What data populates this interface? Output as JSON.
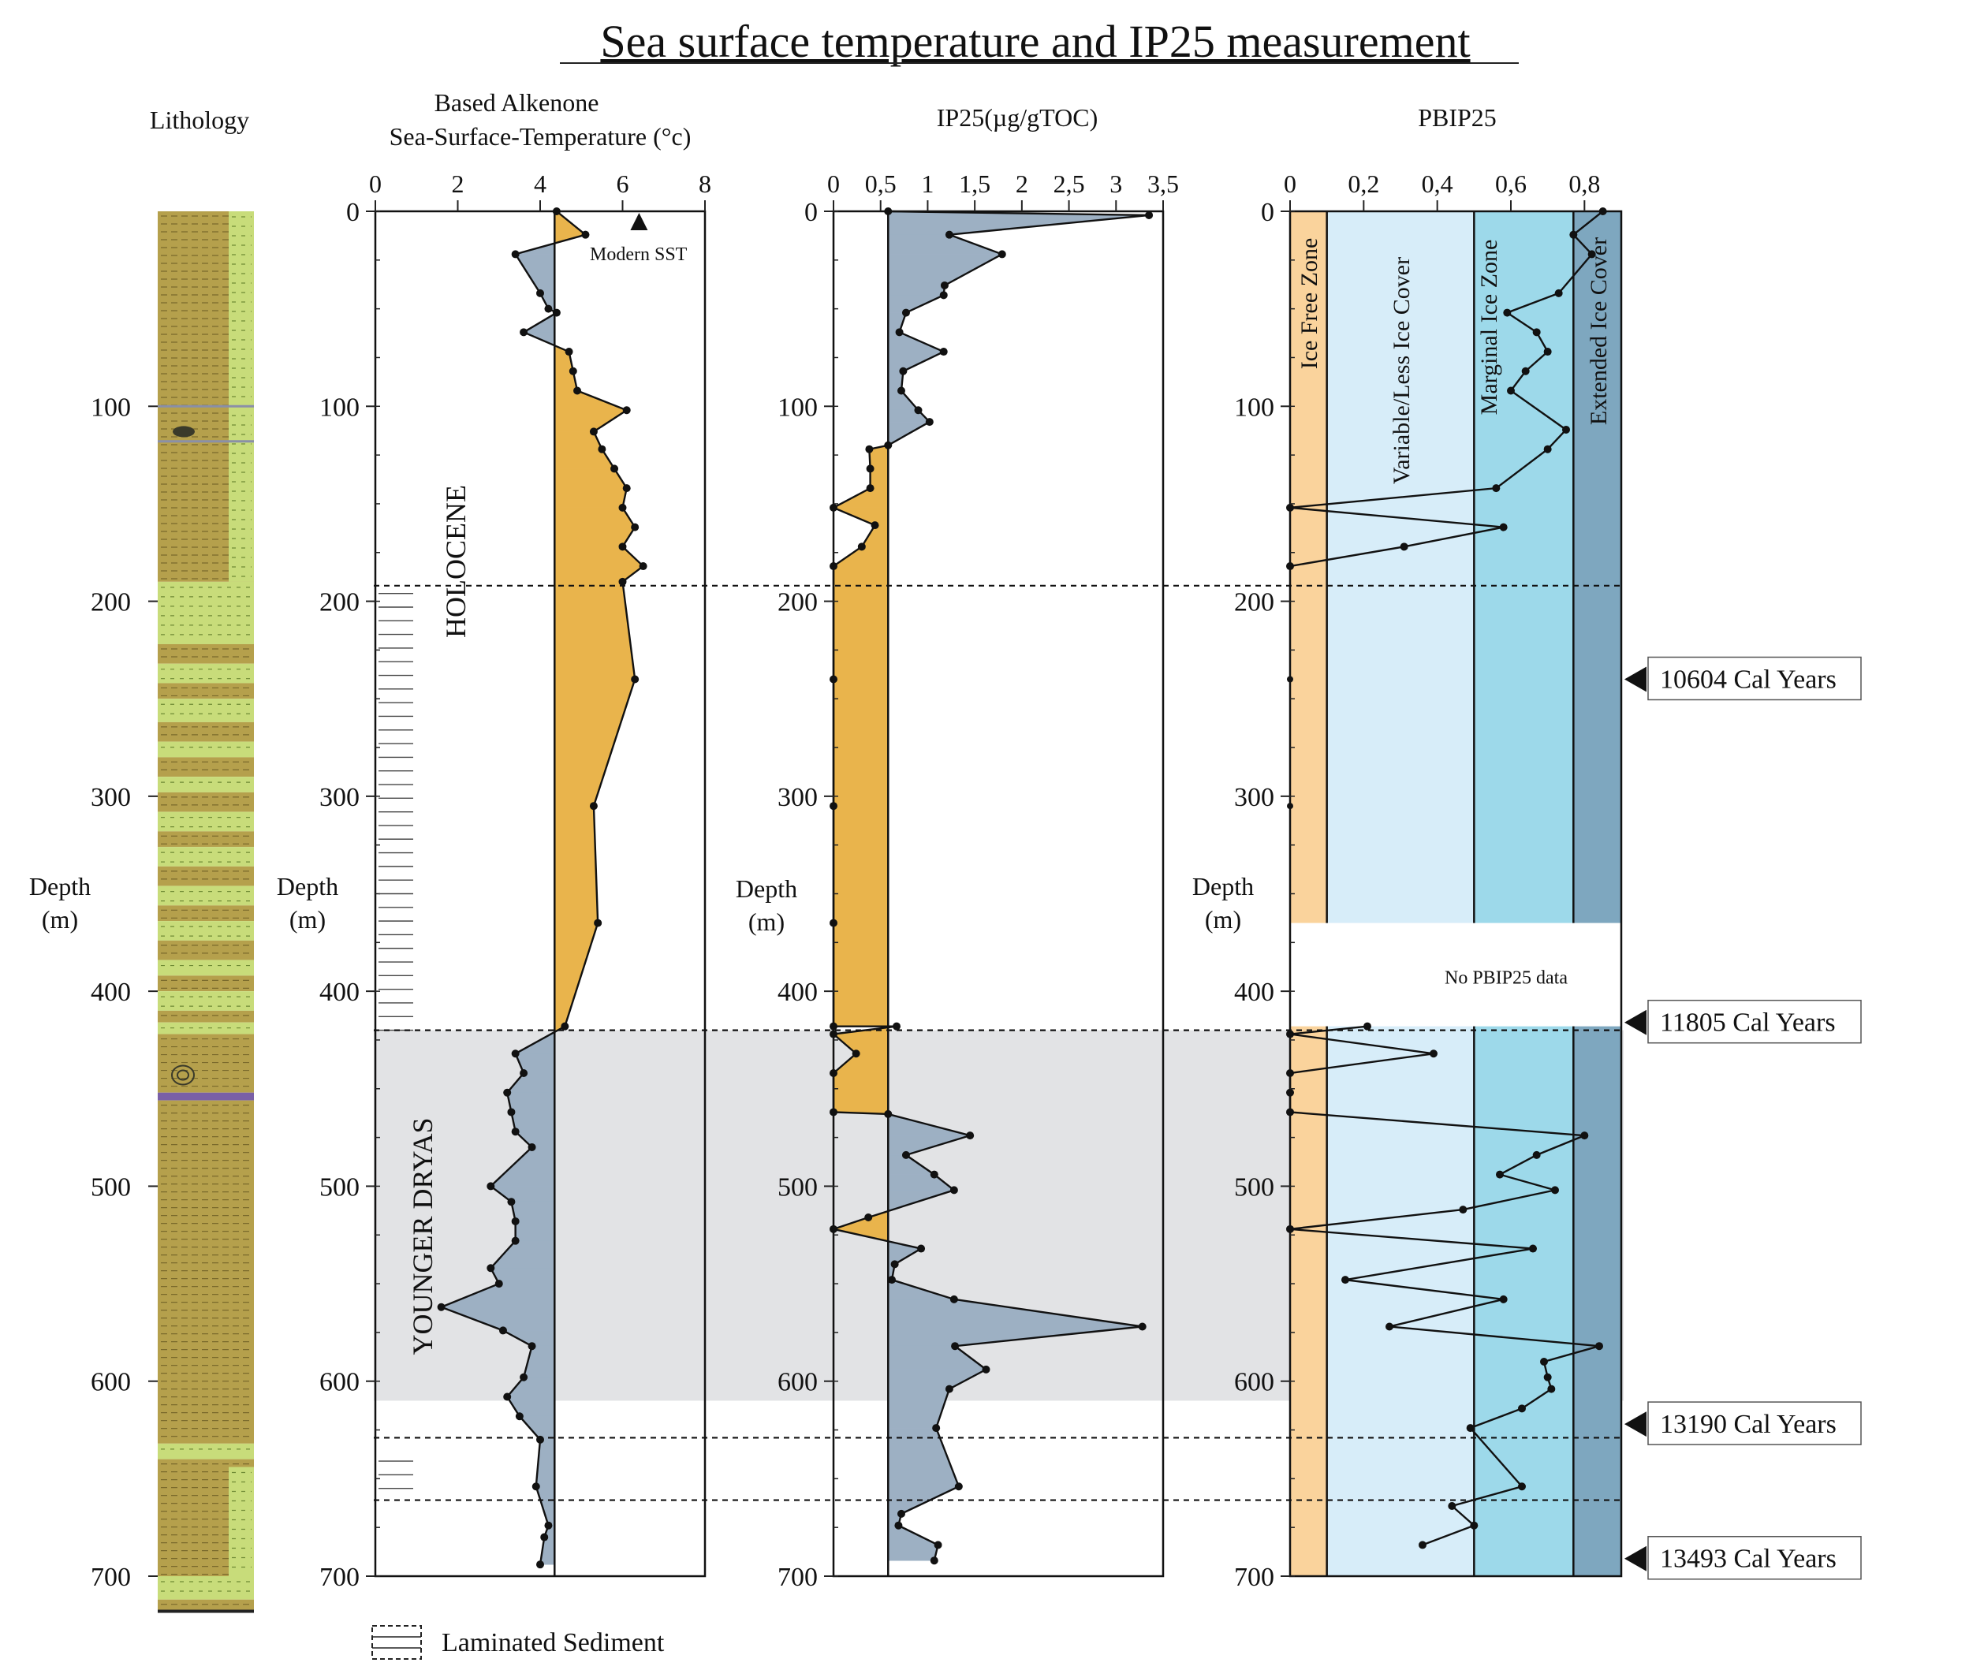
{
  "title": "Sea surface temperature and IP25 measurement",
  "shared": {
    "depth_axis_label": [
      "Depth",
      "(m)"
    ],
    "depth_ticks": [
      0,
      100,
      200,
      300,
      400,
      500,
      600,
      700
    ],
    "depth_range": [
      0,
      700
    ]
  },
  "lithology": {
    "title": "Lithology",
    "depth_ticks": [
      100,
      200,
      300,
      400,
      500,
      600,
      700
    ],
    "colors": {
      "mud": "#b5a04c",
      "sand": "#c8dc7a",
      "purple": "#7a60a6"
    },
    "layers": [
      {
        "from": 0,
        "to": 190,
        "type": "mud"
      },
      {
        "from": 190,
        "to": 222,
        "type": "sand"
      },
      {
        "from": 222,
        "to": 232,
        "type": "mud"
      },
      {
        "from": 232,
        "to": 242,
        "type": "sand"
      },
      {
        "from": 242,
        "to": 250,
        "type": "mud"
      },
      {
        "from": 250,
        "to": 262,
        "type": "sand"
      },
      {
        "from": 262,
        "to": 272,
        "type": "mud"
      },
      {
        "from": 272,
        "to": 280,
        "type": "sand"
      },
      {
        "from": 280,
        "to": 290,
        "type": "mud"
      },
      {
        "from": 290,
        "to": 298,
        "type": "sand"
      },
      {
        "from": 298,
        "to": 308,
        "type": "mud"
      },
      {
        "from": 308,
        "to": 318,
        "type": "sand"
      },
      {
        "from": 318,
        "to": 326,
        "type": "mud"
      },
      {
        "from": 326,
        "to": 336,
        "type": "sand"
      },
      {
        "from": 336,
        "to": 346,
        "type": "mud"
      },
      {
        "from": 346,
        "to": 356,
        "type": "sand"
      },
      {
        "from": 356,
        "to": 364,
        "type": "mud"
      },
      {
        "from": 364,
        "to": 374,
        "type": "sand"
      },
      {
        "from": 374,
        "to": 384,
        "type": "mud"
      },
      {
        "from": 384,
        "to": 392,
        "type": "sand"
      },
      {
        "from": 392,
        "to": 400,
        "type": "mud"
      },
      {
        "from": 400,
        "to": 410,
        "type": "sand"
      },
      {
        "from": 410,
        "to": 416,
        "type": "mud"
      },
      {
        "from": 416,
        "to": 422,
        "type": "sand"
      },
      {
        "from": 422,
        "to": 452,
        "type": "mud"
      },
      {
        "from": 452,
        "to": 456,
        "type": "purple"
      },
      {
        "from": 456,
        "to": 632,
        "type": "mud"
      },
      {
        "from": 632,
        "to": 640,
        "type": "sand"
      },
      {
        "from": 640,
        "to": 700,
        "type": "mud"
      },
      {
        "from": 700,
        "to": 712,
        "type": "sand"
      },
      {
        "from": 712,
        "to": 718,
        "type": "mud"
      }
    ],
    "right_stripe": [
      {
        "from": 0,
        "to": 190,
        "type": "sand"
      },
      {
        "from": 644,
        "to": 700,
        "type": "sand"
      }
    ]
  },
  "boundaries": [
    {
      "depth": 192,
      "style": "dashed"
    },
    {
      "depth": 420,
      "style": "dashed"
    },
    {
      "depth": 629,
      "style": "dashed"
    },
    {
      "depth": 661,
      "style": "dashed"
    }
  ],
  "younger_dryas_band": [
    420,
    610
  ],
  "period_labels": {
    "holocene": "HOLOCENE",
    "younger_dryas": "YOUNGER DRYAS"
  },
  "laminated_legend": "Laminated Sediment",
  "laminated_intervals": [
    [
      192,
      420
    ],
    [
      637,
      660
    ]
  ],
  "age_markers": [
    {
      "depth": 240,
      "label": "10604 Cal Years"
    },
    {
      "depth": 416,
      "label": "11805 Cal Years"
    },
    {
      "depth": 622,
      "label": "13190 Cal Years"
    },
    {
      "depth": 691,
      "label": "13493 Cal Years"
    }
  ],
  "chart_data": [
    {
      "type": "line",
      "title": "Based Alkenone",
      "subtitle": "Sea-Surface-Temperature (°c)",
      "xlim": [
        0,
        8
      ],
      "xticks": [
        "0",
        "2",
        "4",
        "6",
        "8"
      ],
      "reference_value": 4.35,
      "colors": {
        "above": "#e9b44c",
        "below": "#9db0c3"
      },
      "modern_sst": {
        "value": 6.4,
        "label": "Modern SST"
      },
      "x": [
        4.4,
        5.1,
        3.4,
        4.0,
        4.2,
        4.4,
        3.6,
        4.7,
        4.8,
        4.9,
        6.1,
        5.3,
        5.5,
        5.8,
        6.1,
        6.0,
        6.3,
        6.0,
        6.5,
        6.0,
        6.3,
        5.3,
        5.4,
        4.6,
        3.4,
        3.6,
        3.2,
        3.3,
        3.4,
        3.8,
        2.8,
        3.3,
        3.4,
        3.4,
        2.8,
        3.0,
        1.6,
        3.1,
        3.8,
        3.6,
        3.2,
        3.5,
        4.0,
        3.9,
        4.2,
        4.1,
        4.0
      ],
      "y": [
        0,
        12,
        22,
        42,
        50,
        52,
        62,
        72,
        82,
        92,
        102,
        113,
        122,
        132,
        142,
        152,
        162,
        172,
        182,
        190,
        240,
        305,
        365,
        418,
        432,
        442,
        452,
        462,
        472,
        480,
        500,
        508,
        518,
        528,
        542,
        550,
        562,
        574,
        582,
        598,
        608,
        618,
        630,
        654,
        674,
        680,
        694
      ]
    },
    {
      "type": "line",
      "title": "IP25(µg/gTOC)",
      "xlim": [
        0,
        3.5
      ],
      "xticks": [
        "0",
        "0,5",
        "1",
        "1,5",
        "2",
        "2,5",
        "3",
        "3,5"
      ],
      "reference_value": 0.58,
      "colors": {
        "above": "#9db0c3",
        "below": "#e9b44c"
      },
      "x": [
        0.58,
        3.35,
        1.23,
        1.79,
        1.18,
        1.17,
        0.77,
        0.7,
        1.17,
        0.74,
        0.72,
        0.9,
        1.02,
        0.58,
        0.38,
        0.39,
        0.39,
        0.0,
        0.44,
        0.3,
        0.0,
        0.0,
        0.0,
        0.0,
        0.0,
        0.67,
        0.0,
        0.24,
        0.0,
        0.0,
        0.58,
        1.45,
        0.77,
        1.07,
        1.28,
        0.37,
        0.0,
        0.93,
        0.65,
        0.62,
        1.28,
        3.28,
        1.29,
        1.62,
        1.23,
        1.09,
        1.33,
        0.72,
        0.69,
        1.11,
        1.07
      ],
      "y": [
        0,
        2,
        12,
        22,
        38,
        43,
        52,
        62,
        72,
        82,
        92,
        102,
        108,
        120,
        122,
        132,
        142,
        152,
        161,
        172,
        182,
        240,
        305,
        365,
        418,
        418,
        422,
        432,
        442,
        462,
        463,
        474,
        484,
        494,
        502,
        516,
        522,
        532,
        540,
        548,
        558,
        572,
        582,
        594,
        604,
        624,
        654,
        668,
        674,
        684,
        692
      ]
    },
    {
      "type": "line",
      "title": "PBIP25",
      "xlim": [
        0,
        0.9
      ],
      "xticks": [
        "0",
        "0,2",
        "0,4",
        "0,6",
        "0,8"
      ],
      "zones": [
        {
          "from": 0,
          "to": 0.1,
          "label": "Ice Free Zone",
          "color": "#fad39c"
        },
        {
          "from": 0.1,
          "to": 0.5,
          "label": "Variable/Less Ice Cover",
          "color": "#d7edf9"
        },
        {
          "from": 0.5,
          "to": 0.77,
          "label": "Marginal Ice Zone",
          "color": "#9dd9ea"
        },
        {
          "from": 0.77,
          "to": 0.9,
          "label": "Extended Ice Cover",
          "color": "#7ea7bf"
        }
      ],
      "no_data": {
        "from": 365,
        "to": 418,
        "label": "No PBIP25 data"
      },
      "x": [
        0.85,
        0.77,
        0.82,
        0.73,
        0.59,
        0.67,
        0.7,
        0.64,
        0.6,
        0.75,
        0.7,
        0.56,
        0.0,
        0.58,
        0.31,
        0.0,
        0.0,
        0.0,
        0.21,
        0.0,
        0.39,
        0.0,
        0.0,
        0.0,
        0.8,
        0.67,
        0.57,
        0.72,
        0.47,
        0.0,
        0.66,
        0.15,
        0.58,
        0.27,
        0.84,
        0.69,
        0.7,
        0.71,
        0.63,
        0.49,
        0.63,
        0.44,
        0.5,
        0.36
      ],
      "y": [
        0,
        12,
        22,
        42,
        52,
        62,
        72,
        82,
        92,
        112,
        122,
        142,
        152,
        162,
        172,
        182,
        240,
        305,
        418,
        422,
        432,
        442,
        452,
        462,
        474,
        484,
        494,
        502,
        512,
        522,
        532,
        548,
        558,
        572,
        582,
        590,
        598,
        604,
        614,
        624,
        654,
        664,
        674,
        684
      ]
    }
  ]
}
